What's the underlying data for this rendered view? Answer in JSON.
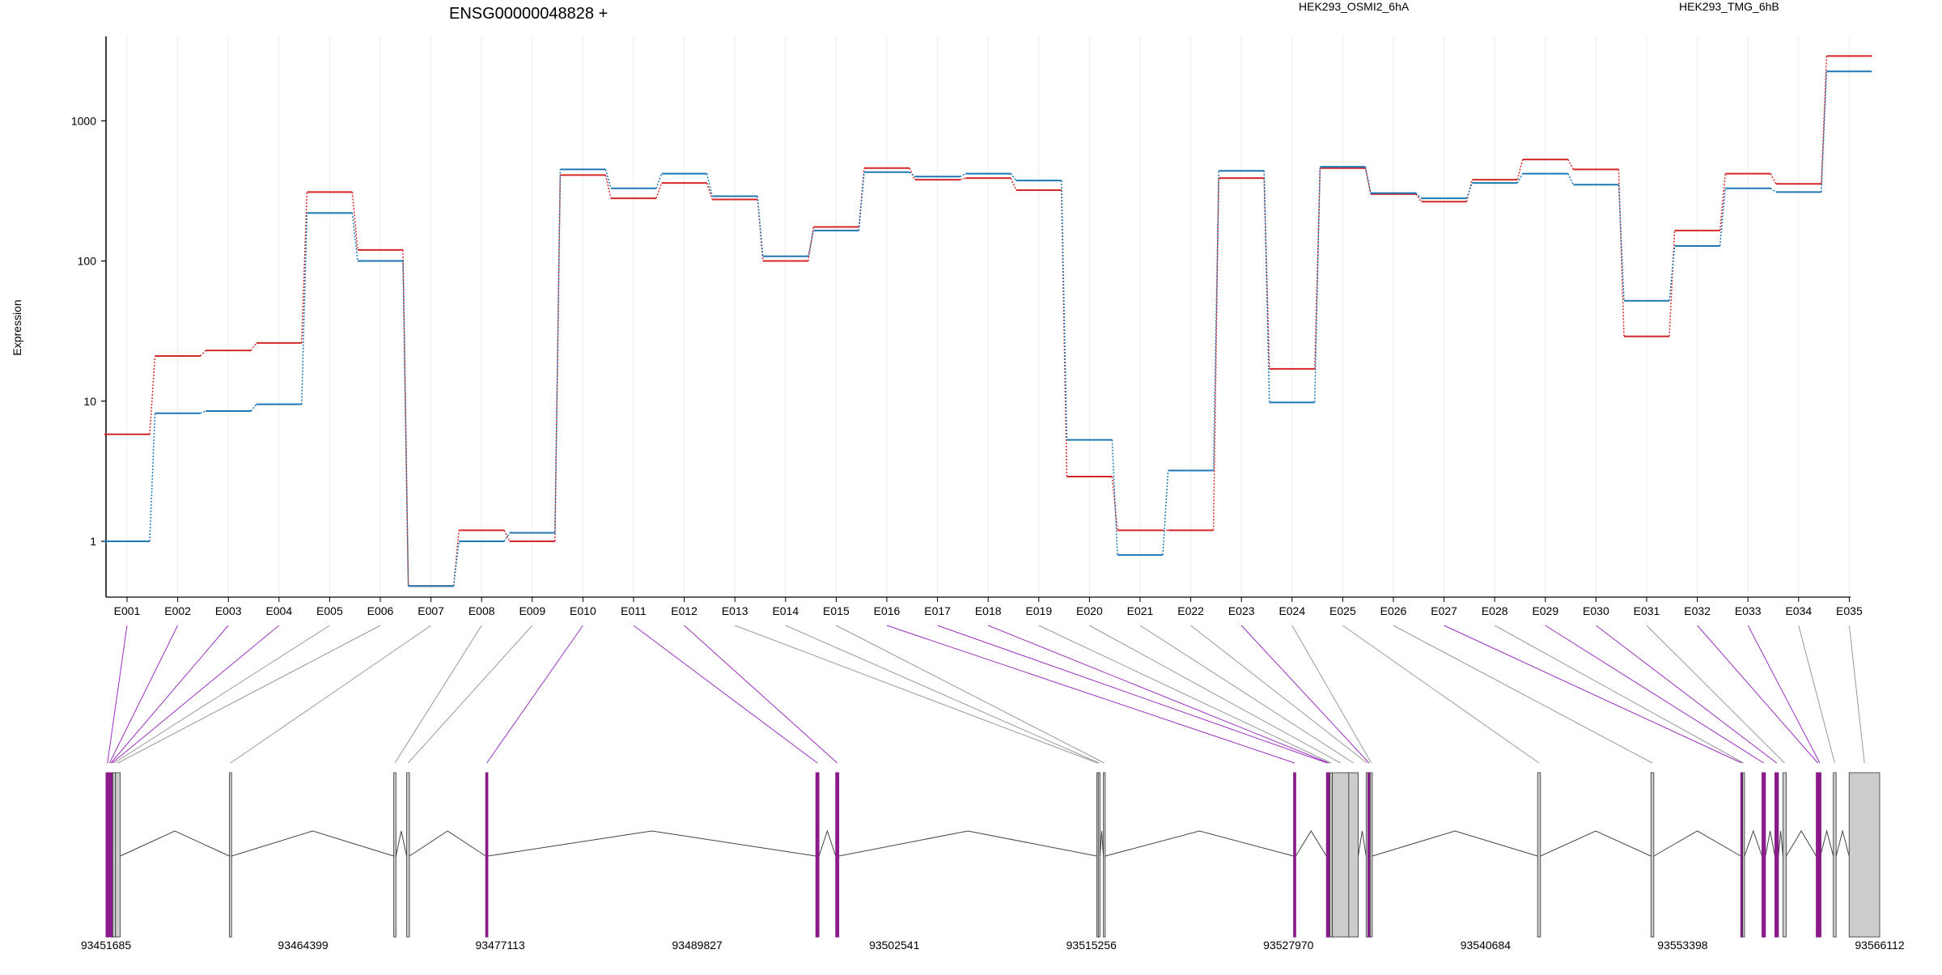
{
  "chart_data": {
    "type": "line",
    "title": "ENSG00000048828 +",
    "ylabel": "Expression",
    "yscale": "log",
    "ylim": [
      0.4,
      4000
    ],
    "yticks": [
      1,
      10,
      100,
      1000
    ],
    "ytick_labels": [
      "1",
      "10",
      "100",
      "1000"
    ],
    "grid": "vertical",
    "legend_position": "top",
    "categories": [
      "E001",
      "E002",
      "E003",
      "E004",
      "E005",
      "E006",
      "E007",
      "E008",
      "E009",
      "E010",
      "E011",
      "E012",
      "E013",
      "E014",
      "E015",
      "E016",
      "E017",
      "E018",
      "E019",
      "E020",
      "E021",
      "E022",
      "E023",
      "E024",
      "E025",
      "E026",
      "E027",
      "E028",
      "E029",
      "E030",
      "E031",
      "E032",
      "E033",
      "E034",
      "E035"
    ],
    "series": [
      {
        "name": "HEK293_OSMI2_6hA",
        "color": "#d62728",
        "values": [
          5.8,
          21,
          23,
          26,
          310,
          120,
          0.48,
          1.2,
          1.0,
          410,
          280,
          360,
          275,
          100,
          175,
          460,
          380,
          390,
          320,
          2.9,
          1.2,
          1.2,
          390,
          17,
          460,
          300,
          265,
          380,
          530,
          450,
          29,
          165,
          420,
          355,
          2900
        ]
      },
      {
        "name": "HEK293_TMG_6hB",
        "color": "#1f77b4",
        "values": [
          1.0,
          8.2,
          8.5,
          9.5,
          220,
          100,
          0.48,
          1.0,
          1.15,
          450,
          330,
          420,
          290,
          108,
          165,
          430,
          400,
          420,
          375,
          5.3,
          0.8,
          3.2,
          440,
          9.8,
          470,
          305,
          280,
          360,
          420,
          350,
          52,
          128,
          330,
          310,
          2250
        ]
      }
    ],
    "gene_model": {
      "coord_start": 93451685,
      "coord_end": 93566112,
      "coordinate_ticks": [
        "93451685",
        "93464399",
        "93477113",
        "93489827",
        "93502541",
        "93515256",
        "93527970",
        "93540684",
        "93553398",
        "93566112"
      ],
      "exons": [
        {
          "id": "E001",
          "start": 93451685,
          "end": 93451870,
          "highlight": true
        },
        {
          "id": "E002",
          "start": 93451870,
          "end": 93451960,
          "highlight": true
        },
        {
          "id": "E003",
          "start": 93451960,
          "end": 93452040,
          "highlight": true
        },
        {
          "id": "E004",
          "start": 93452040,
          "end": 93452120,
          "highlight": true
        },
        {
          "id": "E005",
          "start": 93452120,
          "end": 93452300,
          "highlight": false
        },
        {
          "id": "E006",
          "start": 93452300,
          "end": 93452600,
          "highlight": false
        },
        {
          "id": "E007",
          "start": 93459650,
          "end": 93459790,
          "highlight": false
        },
        {
          "id": "E008",
          "start": 93470250,
          "end": 93470390,
          "highlight": false
        },
        {
          "id": "E009",
          "start": 93471080,
          "end": 93471260,
          "highlight": false
        },
        {
          "id": "E010",
          "start": 93476180,
          "end": 93476320,
          "highlight": true
        },
        {
          "id": "E011",
          "start": 93497480,
          "end": 93497680,
          "highlight": true
        },
        {
          "id": "E012",
          "start": 93498760,
          "end": 93498960,
          "highlight": true
        },
        {
          "id": "E013",
          "start": 93515610,
          "end": 93515700,
          "highlight": false
        },
        {
          "id": "E014",
          "start": 93515700,
          "end": 93515810,
          "highlight": false
        },
        {
          "id": "E015",
          "start": 93516030,
          "end": 93516150,
          "highlight": false
        },
        {
          "id": "E016",
          "start": 93528300,
          "end": 93528440,
          "highlight": true
        },
        {
          "id": "E017",
          "start": 93530420,
          "end": 93530520,
          "highlight": true
        },
        {
          "id": "E018",
          "start": 93530520,
          "end": 93530640,
          "highlight": true
        },
        {
          "id": "E019",
          "start": 93530640,
          "end": 93530800,
          "highlight": false
        },
        {
          "id": "E020",
          "start": 93530800,
          "end": 93531860,
          "highlight": false
        },
        {
          "id": "E021",
          "start": 93531860,
          "end": 93532470,
          "highlight": false
        },
        {
          "id": "E022",
          "start": 93532980,
          "end": 93533100,
          "highlight": false
        },
        {
          "id": "E023",
          "start": 93533100,
          "end": 93533240,
          "highlight": true
        },
        {
          "id": "E024",
          "start": 93533240,
          "end": 93533380,
          "highlight": false
        },
        {
          "id": "E025",
          "start": 93544040,
          "end": 93544230,
          "highlight": false
        },
        {
          "id": "E026",
          "start": 93551350,
          "end": 93551540,
          "highlight": false
        },
        {
          "id": "E027",
          "start": 93557150,
          "end": 93557270,
          "highlight": true
        },
        {
          "id": "E028",
          "start": 93557270,
          "end": 93557390,
          "highlight": false
        },
        {
          "id": "E029",
          "start": 93558520,
          "end": 93558740,
          "highlight": true
        },
        {
          "id": "E030",
          "start": 93559350,
          "end": 93559580,
          "highlight": true
        },
        {
          "id": "E031",
          "start": 93559870,
          "end": 93560080,
          "highlight": false
        },
        {
          "id": "E032",
          "start": 93562020,
          "end": 93562220,
          "highlight": true
        },
        {
          "id": "E033",
          "start": 93562220,
          "end": 93562280,
          "highlight": true
        },
        {
          "id": "E034",
          "start": 93563120,
          "end": 93563300,
          "highlight": false
        },
        {
          "id": "E035",
          "start": 93564140,
          "end": 93566112,
          "highlight": false
        }
      ]
    }
  }
}
